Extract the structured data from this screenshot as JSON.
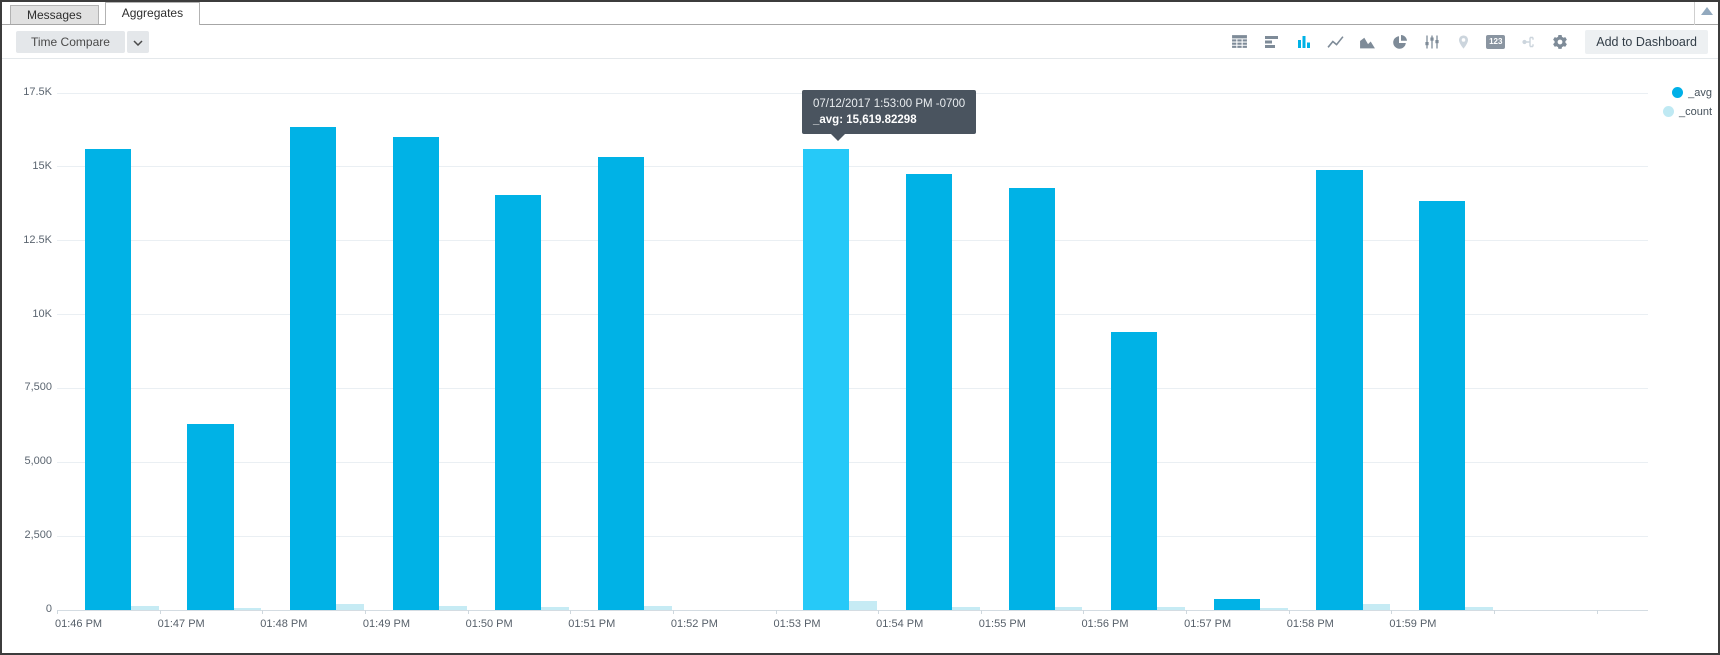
{
  "tabs": [
    {
      "label": "Messages",
      "active": false
    },
    {
      "label": "Aggregates",
      "active": true
    }
  ],
  "toolbar": {
    "time_compare_label": "Time Compare",
    "add_to_dashboard_label": "Add to Dashboard",
    "single_value_badge": "123",
    "icons": [
      {
        "name": "table-icon",
        "state": "normal"
      },
      {
        "name": "bar-horizontal-icon",
        "state": "normal"
      },
      {
        "name": "bar-vertical-icon",
        "state": "active"
      },
      {
        "name": "line-chart-icon",
        "state": "normal"
      },
      {
        "name": "area-chart-icon",
        "state": "normal"
      },
      {
        "name": "pie-chart-icon",
        "state": "normal"
      },
      {
        "name": "box-plot-icon",
        "state": "normal"
      },
      {
        "name": "map-pin-icon",
        "state": "disabled"
      },
      {
        "name": "single-value-icon",
        "state": "normal"
      },
      {
        "name": "flow-diagram-icon",
        "state": "disabled"
      },
      {
        "name": "gear-icon",
        "state": "normal"
      }
    ]
  },
  "legend": [
    {
      "label": "_avg",
      "color": "#00b0e8"
    },
    {
      "label": "_count",
      "color": "#bfe9f3"
    }
  ],
  "tooltip": {
    "datetime": "07/12/2017 1:53:00 PM -0700",
    "value_line": "_avg: 15,619.82298"
  },
  "chart_data": {
    "type": "bar",
    "title": "",
    "xlabel": "",
    "ylabel": "",
    "categories": [
      "01:46 PM",
      "01:47 PM",
      "01:48 PM",
      "01:49 PM",
      "01:50 PM",
      "01:51 PM",
      "01:52 PM",
      "01:53 PM",
      "01:54 PM",
      "01:55 PM",
      "01:56 PM",
      "01:57 PM",
      "01:58 PM",
      "01:59 PM"
    ],
    "series": [
      {
        "name": "_avg",
        "color": "#00b2e6",
        "values": [
          15600,
          6300,
          16350,
          16000,
          14050,
          15350,
          0,
          15619.82298,
          14750,
          14300,
          9400,
          370,
          14900,
          13850
        ]
      },
      {
        "name": "_count",
        "color": "#c6ebf4",
        "values": [
          130,
          80,
          190,
          130,
          100,
          120,
          0,
          290,
          100,
          110,
          100,
          80,
          190,
          110
        ]
      }
    ],
    "highlight_index": 7,
    "highlight_color": "#26c9f8",
    "ylim": [
      0,
      17500
    ],
    "yticks": [
      "0",
      "2,500",
      "5,000",
      "7,500",
      "10K",
      "12.5K",
      "15K",
      "17.5K"
    ],
    "ytick_values": [
      0,
      2500,
      5000,
      7500,
      10000,
      12500,
      15000,
      17500
    ],
    "grid": true,
    "legend_position": "top-right",
    "trailing_empty_slots": 1.5
  }
}
